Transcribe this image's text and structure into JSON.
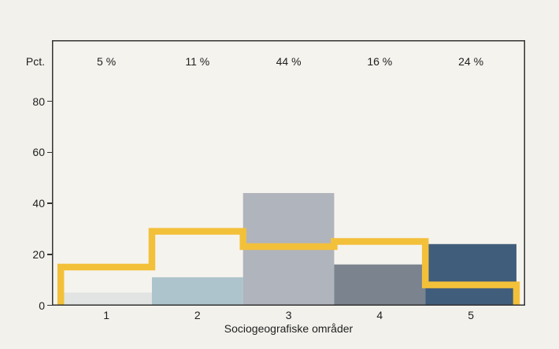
{
  "chart_data": {
    "type": "bar",
    "title": "",
    "xlabel": "Sociogeografiske områder",
    "ylabel": "Pct.",
    "categories": [
      "1",
      "2",
      "3",
      "4",
      "5"
    ],
    "y_ticks": [
      0,
      20,
      40,
      60,
      80
    ],
    "ylim": [
      0,
      104
    ],
    "grid": false,
    "legend": false,
    "series": [
      {
        "name": "area-share-bars",
        "type": "bar",
        "values": [
          5,
          11,
          44,
          16,
          24
        ],
        "data_labels": [
          "5 %",
          "11 %",
          "44 %",
          "16 %",
          "24 %"
        ],
        "bar_colors": [
          "#e1e4e2",
          "#aec4cc",
          "#b0b4bc",
          "#7b838f",
          "#415d7c"
        ]
      },
      {
        "name": "reference-step-line",
        "type": "step",
        "values": [
          15,
          29,
          23,
          25,
          8
        ],
        "color": "#f3c03a"
      }
    ]
  },
  "colors": {
    "background": "#f2f1ec",
    "plot_background": "#f5f3ee",
    "axis": "#333333",
    "text": "#1f1f1f"
  }
}
